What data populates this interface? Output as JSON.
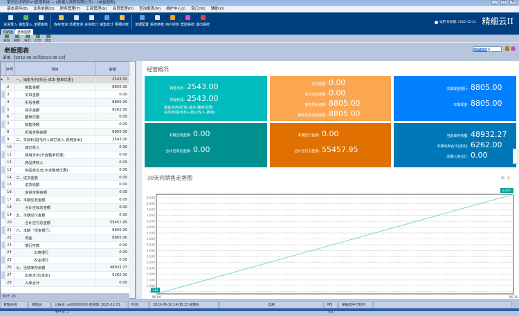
{
  "window": {
    "title": "银河云进销存VII管理系统 — [新疆九商贸有限公司] - [老板图表]"
  },
  "menu": [
    "基本资料(B)",
    "业务单据(D)",
    "财务管理(F)",
    "工资管理(G)",
    "会员管理(H)",
    "查询报表(M)",
    "维护中心(J)",
    "窗口(W)",
    "辅助(H)"
  ],
  "toolbar": [
    "进货录入",
    "销售录入",
    "单据审核",
    "库存查询",
    "单据查询",
    "进货统计",
    "销售统计",
    "明细对帐",
    "单据配置",
    "系统参数",
    "用户授权",
    "帮助系统",
    "退出系统"
  ],
  "toolbar_colors": [
    "#d8e6f5",
    "#5cc05c",
    "#d8e6f5",
    "#f0c040",
    "#d8e6f5",
    "#d8e6f5",
    "#5fa0e0",
    "#f0c040",
    "#5fa0e0",
    "#d8e6f5",
    "#f0a030",
    "#e050c0",
    "#e04040"
  ],
  "brand": "精细云II",
  "validity": "试用 有效期: 2025-12-31",
  "tabs": [
    "导航图",
    "老板图表"
  ],
  "subtoolbar": [
    "查询",
    "刷新",
    "导出",
    "打印",
    "退出"
  ],
  "page_title": "老板图表",
  "date_range": "录单:【2022-06-10到2022-06-10】",
  "view_select": "图表视图",
  "table": {
    "headers": [
      "序号",
      "项目",
      "金额"
    ],
    "rows": [
      [
        "1",
        "一、销售毛利[折后-成本-整单优惠]",
        "2543.00",
        0
      ],
      [
        "2",
        "销售金额",
        "8805.00",
        1
      ],
      [
        "3",
        "折扣金额",
        "0.00",
        1
      ],
      [
        "4",
        "折后金额",
        "8805.00",
        1
      ],
      [
        "5",
        "成本金额",
        "6262.00",
        1
      ],
      [
        "6",
        "整单优惠",
        "0.00",
        1
      ],
      [
        "7",
        "销售税额",
        "0.00",
        1
      ],
      [
        "8",
        "折后含税金额",
        "8805.00",
        1
      ],
      [
        "9",
        "二、实际利润[毛利+其它收入-费用支出]",
        "2543.00",
        0
      ],
      [
        "10",
        "其它收入",
        "0.00",
        1
      ],
      [
        "11",
        "费用支出(不含整单优惠)",
        "0.00",
        1
      ],
      [
        "12",
        "商品类收入",
        "0.00",
        1
      ],
      [
        "13",
        "商品类支出(不含整单优惠)",
        "0.00",
        1
      ],
      [
        "14",
        "三、进货金额",
        "0.00",
        0
      ],
      [
        "15",
        "进货税额",
        "0.00",
        1
      ],
      [
        "16",
        "进货含税金额",
        "0.00",
        1
      ],
      [
        "17",
        "四、本期应收金额",
        "0.00",
        0
      ],
      [
        "18",
        "合计应收总金额",
        "0.00",
        1
      ],
      [
        "19",
        "五、本期应付金额",
        "0.00",
        0
      ],
      [
        "20",
        "合计应付总金额",
        "55457.95",
        1
      ],
      [
        "21",
        "六、本期『现金银行』",
        "8805.00",
        0
      ],
      [
        "22",
        "现金",
        "8805.00",
        1
      ],
      [
        "23",
        "银行存款",
        "0.00",
        1
      ],
      [
        "24",
        "工商银行",
        "0.00",
        2
      ],
      [
        "25",
        "农业银行",
        "0.00",
        2
      ],
      [
        "26",
        "七、当前库存余额",
        "48932.27",
        0
      ],
      [
        "27",
        "出库合计[成本]",
        "6262.00",
        1
      ],
      [
        "28",
        "入库合计",
        "0.00",
        1
      ]
    ],
    "footer": "合计 28"
  },
  "overview": {
    "title": "经营概况",
    "cards": [
      {
        "color": "#00bcbc",
        "rows": [
          [
            "销售毛利:",
            "2543.00"
          ],
          [
            "实际利润:",
            "2543.00"
          ]
        ],
        "notes": [
          "销售毛利(折后-成本-整单优惠)",
          "实际利润(毛利+其它收入-费用)"
        ]
      },
      {
        "color": "#fba651",
        "rows": [
          [
            "进货金额:",
            "0.00"
          ],
          [
            "进货含税金额:",
            "0.00"
          ],
          [
            "销售折后金额:",
            "8805.00"
          ],
          [
            "销售折后含税金额:",
            "8805.00"
          ]
        ]
      },
      {
        "color": "#0080ff",
        "rows": [
          [
            "本期现金银行:",
            "8805.00"
          ],
          [
            "本期现金:",
            "8805.00"
          ]
        ]
      },
      {
        "color": "#009090",
        "rows": [
          [
            "本期应收金额:",
            "0.00"
          ],
          [
            "合计应收总金额:",
            "0.00"
          ]
        ]
      },
      {
        "color": "#e07000",
        "rows": [
          [
            "本期应付金额:",
            "0.00"
          ],
          [
            "合计应付总金额:",
            "55457.95"
          ]
        ]
      },
      {
        "color": "#0078b8",
        "rows": [
          [
            "当前库存余额:",
            "48932.27"
          ],
          [
            "本期出库合计[成本]:",
            "6262.00"
          ],
          [
            "本期入库合计:",
            "0.00"
          ]
        ]
      }
    ]
  },
  "chart_data": {
    "type": "line",
    "title": "30天内销售走势图",
    "legend": [
      "销",
      "退"
    ],
    "legend_colors": [
      "#40c0c0",
      "#fba651"
    ],
    "legend_placement": "top-right",
    "x": [
      "06-04",
      "06-10"
    ],
    "series": [
      {
        "name": "销",
        "values": [
          312,
          8805
        ],
        "color": "#7fd6d6"
      }
    ],
    "data_labels": [
      "312",
      "8,805"
    ],
    "ylim": [
      312,
      8805
    ],
    "yticks": [
      "500",
      "1,000",
      "1,500",
      "2,000",
      "2,500",
      "3,000",
      "3,500",
      "4,000",
      "4,500",
      "5,000",
      "5,500",
      "6,000",
      "6,500",
      "7,000",
      "7,500",
      "8,000",
      "8,500"
    ],
    "grid": true
  },
  "statusbar": [
    "管理员组",
    "管理员",
    "公账号: ux00000000 有效期: 2025-12-31 用户数: 1",
    "时间:",
    "2022-06-10 14:08:13  星期五",
    "全部",
    "MS SQL",
    "单据选中行和列",
    ""
  ]
}
